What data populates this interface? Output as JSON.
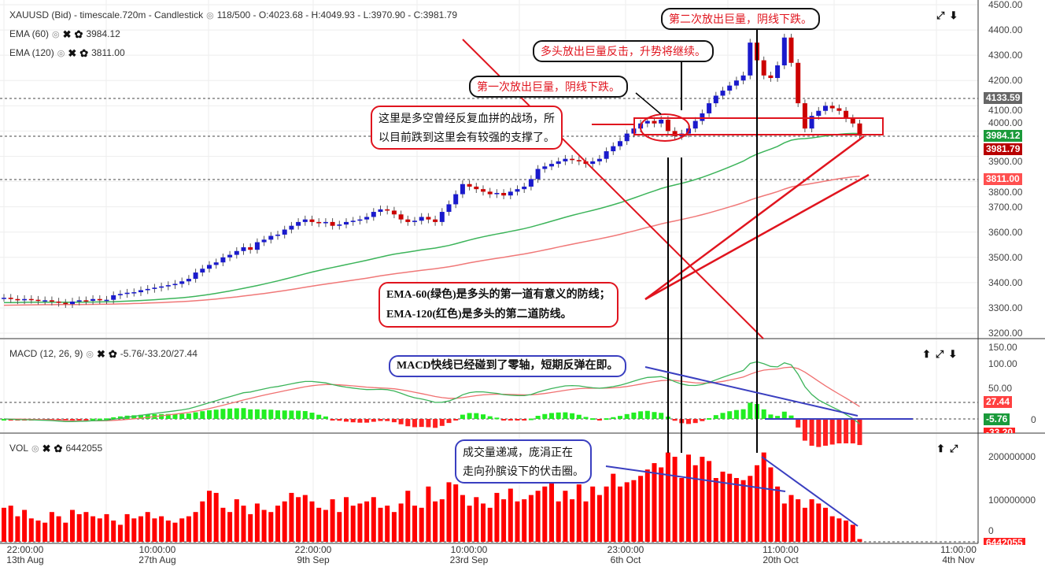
{
  "header": {
    "symbol_line": "XAUUSD (Bid) - timescale.720m - Candlestick",
    "stats": "118/500 - O:4023.68 - H:4049.93 - L:3970.90 - C:3981.79"
  },
  "indicators": [
    {
      "label": "EMA (60)",
      "value": "3984.12",
      "color": "#3cb45a"
    },
    {
      "label": "EMA (120)",
      "value": "3811.00",
      "color": "#f07878"
    }
  ],
  "macd": {
    "label": "MACD (12, 26, 9)",
    "value": "-5.76/-33.20/27.44"
  },
  "vol": {
    "label": "VOL",
    "value": "6442055"
  },
  "icons": {
    "eye": "eye-icon",
    "close": "close-icon",
    "gear": "gear-icon"
  },
  "colors": {
    "up": "#1a1acc",
    "down": "#cc0000",
    "ema60": "#3cb45a",
    "ema120": "#f07878",
    "volume": "#ff0000",
    "macd_pos": "#22ee22",
    "macd_neg": "#ff2020"
  },
  "price_tags": {
    "last_high": "4133.59",
    "ema60": "3984.12",
    "close": "3981.79",
    "ema120": "3811.00"
  },
  "macd_tags": {
    "signal": "27.44",
    "macd": "-5.76",
    "hist": "-33.20"
  },
  "vol_tag": "6442055",
  "annotations": {
    "second_volume": "第二次放出巨量，阴线下跌。",
    "bulls_counter": "多头放出巨量反击，升势将继续。",
    "first_volume": "第一次放出巨量，阴线下跌。",
    "battlefield_1": "这里是多空曾经反复血拼的战场，所",
    "battlefield_2": "以目前跌到这里会有较强的支撑了。",
    "ema_1": "EMA-60(绿色)是多头的第一道有意义的防线；",
    "ema_2": "EMA-120(红色)是多头的第二道防线。",
    "macd_note": "MACD快线已经碰到了零轴，短期反弹在即。",
    "vol_1": "成交量递减，庞涓正在",
    "vol_2": "走向孙膑设下的伏击圈。"
  },
  "chart_data": {
    "type": "candlestick",
    "price_axis": {
      "ticks": [
        "4500.00",
        "4400.00",
        "4300.00",
        "4200.00",
        "4100.00",
        "4000.00",
        "3900.00",
        "3800.00",
        "3700.00",
        "3600.00",
        "3500.00",
        "3400.00",
        "3300.00",
        "3200.00"
      ],
      "range": [
        3200,
        4500
      ]
    },
    "macd_axis": {
      "ticks": [
        "150.00",
        "100.00",
        "50.00",
        "0"
      ]
    },
    "vol_axis": {
      "ticks": [
        "200000000",
        "100000000",
        "0"
      ]
    },
    "time_ticks": [
      [
        "22:00:00",
        "13th Aug"
      ],
      [
        "10:00:00",
        "27th Aug"
      ],
      [
        "22:00:00",
        "9th Sep"
      ],
      [
        "10:00:00",
        "23rd Sep"
      ],
      [
        "23:00:00",
        "6th Oct"
      ],
      [
        "11:00:00",
        "20th Oct"
      ],
      [
        "11:00:00",
        "4th Nov"
      ]
    ],
    "close": [
      3340,
      3335,
      3330,
      3335,
      3332,
      3328,
      3330,
      3325,
      3320,
      3315,
      3325,
      3330,
      3328,
      3335,
      3330,
      3332,
      3350,
      3355,
      3360,
      3362,
      3370,
      3375,
      3380,
      3385,
      3390,
      3395,
      3405,
      3415,
      3440,
      3455,
      3470,
      3480,
      3500,
      3510,
      3525,
      3540,
      3530,
      3560,
      3570,
      3585,
      3590,
      3610,
      3625,
      3640,
      3650,
      3640,
      3635,
      3640,
      3625,
      3630,
      3640,
      3645,
      3650,
      3660,
      3680,
      3690,
      3685,
      3670,
      3650,
      3640,
      3645,
      3660,
      3650,
      3640,
      3680,
      3710,
      3750,
      3790,
      3780,
      3770,
      3760,
      3750,
      3755,
      3745,
      3760,
      3770,
      3780,
      3810,
      3850,
      3860,
      3870,
      3880,
      3890,
      3885,
      3880,
      3870,
      3880,
      3890,
      3920,
      3940,
      3960,
      3990,
      4010,
      4030,
      4040,
      4030,
      4045,
      4000,
      3980,
      3990,
      4010,
      4040,
      4070,
      4110,
      4140,
      4160,
      4180,
      4200,
      4220,
      4350,
      4280,
      4220,
      4210,
      4260,
      4370,
      4270,
      4110,
      4010,
      4060,
      4080,
      4100,
      4090,
      4080,
      4050,
      4030,
      3981.79
    ],
    "volume": [
      80000000.0,
      85000000.0,
      60000000.0,
      75000000.0,
      55000000.0,
      50000000.0,
      45000000.0,
      70000000.0,
      60000000.0,
      45000000.0,
      75000000.0,
      65000000.0,
      70000000.0,
      60000000.0,
      55000000.0,
      65000000.0,
      50000000.0,
      40000000.0,
      65000000.0,
      55000000.0,
      60000000.0,
      70000000.0,
      55000000.0,
      60000000.0,
      50000000.0,
      45000000.0,
      55000000.0,
      60000000.0,
      70000000.0,
      95000000.0,
      120000000.0,
      115000000.0,
      80000000.0,
      70000000.0,
      100000000.0,
      85000000.0,
      65000000.0,
      90000000.0,
      75000000.0,
      70000000.0,
      85000000.0,
      95000000.0,
      115000000.0,
      105000000.0,
      110000000.0,
      95000000.0,
      80000000.0,
      75000000.0,
      100000000.0,
      70000000.0,
      105000000.0,
      85000000.0,
      90000000.0,
      95000000.0,
      105000000.0,
      80000000.0,
      85000000.0,
      70000000.0,
      90000000.0,
      120000000.0,
      85000000.0,
      80000000.0,
      130000000.0,
      95000000.0,
      100000000.0,
      140000000.0,
      135000000.0,
      110000000.0,
      85000000.0,
      105000000.0,
      90000000.0,
      80000000.0,
      115000000.0,
      100000000.0,
      125000000.0,
      95000000.0,
      100000000.0,
      110000000.0,
      120000000.0,
      130000000.0,
      150000000.0,
      95000000.0,
      120000000.0,
      100000000.0,
      135000000.0,
      95000000.0,
      130000000.0,
      110000000.0,
      130000000.0,
      160000000.0,
      130000000.0,
      140000000.0,
      145000000.0,
      155000000.0,
      170000000.0,
      185000000.0,
      175000000.0,
      210000000.0,
      200000000.0,
      150000000.0,
      205000000.0,
      180000000.0,
      200000000.0,
      190000000.0,
      150000000.0,
      165000000.0,
      160000000.0,
      150000000.0,
      145000000.0,
      155000000.0,
      180000000.0,
      210000000.0,
      175000000.0,
      130000000.0,
      90000000.0,
      110000000.0,
      100000000.0,
      80000000.0,
      100000000.0,
      90000000.0,
      80000000.0,
      60000000.0,
      55000000.0,
      50000000.0,
      40000000.0,
      6442055
    ]
  }
}
